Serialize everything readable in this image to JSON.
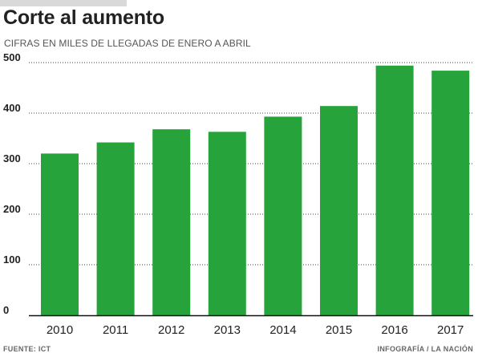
{
  "header": {
    "title": "Corte al aumento",
    "subtitle": "CIFRAS EN MILES DE LLEGADAS DE ENERO A ABRIL"
  },
  "footer": {
    "source": "FUENTE: ICT",
    "credit": "INFOGRAFÍA / LA NACIÓN"
  },
  "colors": {
    "bar": "#26a43b",
    "grid": "#444444",
    "axis": "#111111"
  },
  "chart_data": {
    "type": "bar",
    "title": "Corte al aumento",
    "subtitle": "CIFRAS EN MILES DE LLEGADAS DE ENERO A ABRIL",
    "categories": [
      "2010",
      "2011",
      "2012",
      "2013",
      "2014",
      "2015",
      "2016",
      "2017"
    ],
    "values": [
      320,
      342,
      368,
      363,
      393,
      414,
      494,
      484
    ],
    "yticks": [
      "0",
      "100",
      "200",
      "300",
      "400",
      "500"
    ],
    "ylim": [
      0,
      500
    ],
    "grid": true,
    "grid_style": "dotted",
    "legend": "none"
  }
}
